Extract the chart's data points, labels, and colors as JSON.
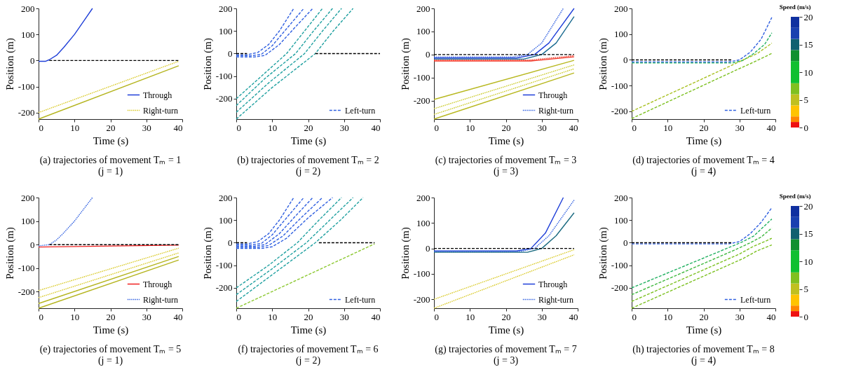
{
  "chart_data": [
    {
      "type": "line",
      "title": "(a) trajectories of movement Tₘ = 1",
      "subtitle": "(j = 1)",
      "xlabel": "Time (s)",
      "ylabel": "Position (m)",
      "xlim": [
        0,
        40
      ],
      "xticks": [
        0,
        10,
        20,
        30,
        40
      ],
      "ylim": [
        -225,
        200
      ],
      "yticks": [
        -200,
        -100,
        0,
        100,
        200
      ],
      "legend": "bottom right",
      "series": [
        {
          "name": "Through",
          "color": "#1f3fd8",
          "line_style": "solid",
          "x": [
            0,
            2,
            3,
            5,
            7,
            10,
            12.5,
            15
          ],
          "values": [
            -3,
            -3,
            3,
            20,
            50,
            100,
            150,
            200
          ]
        },
        {
          "name": "Right-turn",
          "color": "#d8c820",
          "line_style": "dotted",
          "x": [
            0,
            39
          ],
          "values": [
            -200,
            -3
          ]
        },
        {
          "color": "#b5b520",
          "line_style": "solid",
          "x": [
            0,
            39
          ],
          "values": [
            -225,
            -20
          ]
        },
        {
          "color": "#000000",
          "line_style": "dashed",
          "x": [
            3,
            39
          ],
          "values": [
            0,
            0
          ]
        }
      ]
    },
    {
      "type": "line",
      "title": "(b) trajectories of movement Tₘ = 2",
      "subtitle": "(j = 2)",
      "xlabel": "Time (s)",
      "ylabel": "Position (m)",
      "xlim": [
        0,
        40
      ],
      "xticks": [
        0,
        10,
        20,
        30,
        40
      ],
      "ylim": [
        -290,
        200
      ],
      "yticks": [
        -200,
        -100,
        0,
        100,
        200
      ],
      "legend": "bottom right",
      "series": [
        {
          "name": "Left-turn",
          "color": "#2f5fe0",
          "line_style": "dashed",
          "x": [
            0,
            3,
            6,
            9,
            12,
            16
          ],
          "values": [
            -5,
            -5,
            5,
            40,
            100,
            200
          ]
        },
        {
          "color": "#2f5fe0",
          "line_style": "dashed",
          "x": [
            0,
            4,
            7,
            10,
            14,
            18.8
          ],
          "values": [
            -10,
            -10,
            -3,
            35,
            110,
            200
          ]
        },
        {
          "color": "#2f5fe0",
          "line_style": "dashed",
          "x": [
            0,
            5,
            8,
            12,
            16,
            21.3
          ],
          "values": [
            -15,
            -15,
            -8,
            40,
            110,
            200
          ]
        },
        {
          "color": "#1fa0a0",
          "line_style": "dashed",
          "x": [
            0,
            7,
            14,
            19,
            24
          ],
          "values": [
            -200,
            -100,
            0,
            100,
            200
          ]
        },
        {
          "color": "#1fa0a0",
          "line_style": "dashed",
          "x": [
            0,
            8,
            16.5,
            21.5,
            26.8
          ],
          "values": [
            -230,
            -110,
            0,
            100,
            200
          ]
        },
        {
          "color": "#1fa0a0",
          "line_style": "dashed",
          "x": [
            0,
            9,
            19,
            24,
            29.3
          ],
          "values": [
            -260,
            -130,
            0,
            100,
            200
          ]
        },
        {
          "color": "#1fa0a0",
          "line_style": "dashed",
          "x": [
            0,
            10,
            22,
            27,
            32.5
          ],
          "values": [
            -290,
            -150,
            0,
            100,
            200
          ]
        },
        {
          "color": "#000000",
          "line_style": "dashed",
          "x": [
            0,
            3
          ],
          "values": [
            0,
            0
          ]
        },
        {
          "color": "#000000",
          "line_style": "dashed",
          "x": [
            22,
            40
          ],
          "values": [
            0,
            0
          ]
        }
      ]
    },
    {
      "type": "line",
      "title": "(c) trajectories of movement Tₘ = 3",
      "subtitle": "(j = 3)",
      "xlabel": "Time (s)",
      "ylabel": "Position (m)",
      "xlim": [
        0,
        40
      ],
      "xticks": [
        0,
        10,
        20,
        30,
        40
      ],
      "ylim": [
        -280,
        200
      ],
      "yticks": [
        -200,
        -100,
        0,
        100,
        200
      ],
      "legend": "bottom right",
      "series": [
        {
          "name": "Through",
          "color": "#1f3fd8",
          "line_style": "solid",
          "x": [
            0,
            23,
            28,
            32,
            39
          ],
          "values": [
            -15,
            -15,
            0,
            50,
            200
          ]
        },
        {
          "name": "Right-turn",
          "color": "#2f5fe0",
          "line_style": "dotted",
          "x": [
            0,
            22,
            26,
            30,
            36
          ],
          "values": [
            -10,
            -10,
            0,
            50,
            200
          ]
        },
        {
          "color": "#1a6a90",
          "line_style": "solid",
          "x": [
            0,
            25,
            30,
            34,
            39
          ],
          "values": [
            -20,
            -20,
            0,
            50,
            165
          ]
        },
        {
          "color": "#f03020",
          "line_style": "dotted",
          "x": [
            0,
            26,
            39
          ],
          "values": [
            -25,
            -25,
            -5
          ]
        },
        {
          "color": "#f03020",
          "line_style": "solid",
          "x": [
            0,
            27,
            39
          ],
          "values": [
            -28,
            -28,
            -10
          ]
        },
        {
          "color": "#b8b820",
          "line_style": "solid",
          "x": [
            0,
            39
          ],
          "values": [
            -195,
            -25
          ]
        },
        {
          "color": "#c8c820",
          "line_style": "dotted",
          "x": [
            0,
            39
          ],
          "values": [
            -235,
            -45
          ]
        },
        {
          "color": "#c8c820",
          "line_style": "dotted",
          "x": [
            0,
            39
          ],
          "values": [
            -260,
            -62
          ]
        },
        {
          "color": "#b8b820",
          "line_style": "solid",
          "x": [
            0,
            39
          ],
          "values": [
            -280,
            -80
          ]
        },
        {
          "color": "#000000",
          "line_style": "dashed",
          "x": [
            0,
            39
          ],
          "values": [
            0,
            0
          ]
        }
      ]
    },
    {
      "type": "line",
      "title": "(d) trajectories of movement Tₘ = 4",
      "subtitle": "(j = 4)",
      "xlabel": "Time (s)",
      "ylabel": "Position (m)",
      "xlim": [
        0,
        40
      ],
      "xticks": [
        0,
        10,
        20,
        30,
        40
      ],
      "ylim": [
        -230,
        200
      ],
      "yticks": [
        -200,
        -100,
        0,
        100,
        200
      ],
      "legend": "bottom right",
      "clabel": "Speed (m/s)",
      "clim": [
        0,
        20
      ],
      "cticks": [
        0,
        5,
        10,
        15,
        20
      ],
      "series": [
        {
          "name": "Left-turn",
          "color": "#2f5fe0",
          "line_style": "dashed",
          "x": [
            0,
            27,
            30,
            33,
            36,
            39
          ],
          "values": [
            -8,
            -8,
            0,
            30,
            80,
            165
          ]
        },
        {
          "color": "#20b060",
          "line_style": "dashed",
          "x": [
            0,
            28,
            31,
            34,
            37,
            39
          ],
          "values": [
            -12,
            -12,
            -2,
            25,
            60,
            105
          ]
        },
        {
          "color": "#a8c020",
          "line_style": "dashed",
          "x": [
            0,
            28,
            31,
            35,
            39
          ],
          "values": [
            -200,
            -20,
            0,
            25,
            65
          ]
        },
        {
          "color": "#7cc020",
          "line_style": "dashed",
          "x": [
            0,
            29,
            33,
            36,
            39
          ],
          "values": [
            -228,
            -40,
            -15,
            5,
            25
          ]
        },
        {
          "color": "#000000",
          "line_style": "dashed",
          "x": [
            0,
            28
          ],
          "values": [
            0,
            0
          ]
        }
      ]
    },
    {
      "type": "line",
      "title": "(e) trajectories of movement Tₘ = 5",
      "subtitle": "(j = 1)",
      "xlabel": "Time (s)",
      "ylabel": "Position (m)",
      "xlim": [
        0,
        40
      ],
      "xticks": [
        0,
        10,
        20,
        30,
        40
      ],
      "ylim": [
        -270,
        200
      ],
      "yticks": [
        -200,
        -100,
        0,
        100,
        200
      ],
      "legend": "bottom right",
      "series": [
        {
          "name": "Through",
          "color": "#f02020",
          "line_style": "solid",
          "x": [
            0,
            39
          ],
          "values": [
            -10,
            -2
          ]
        },
        {
          "name": "Right-turn",
          "color": "#2f5fe0",
          "line_style": "dotted",
          "x": [
            0,
            3,
            5,
            7,
            10,
            15
          ],
          "values": [
            -5,
            0,
            20,
            50,
            100,
            200
          ]
        },
        {
          "color": "#d8c820",
          "line_style": "dotted",
          "x": [
            0,
            39
          ],
          "values": [
            -195,
            -15
          ]
        },
        {
          "color": "#d8c820",
          "line_style": "dotted",
          "x": [
            0,
            39
          ],
          "values": [
            -225,
            -35
          ]
        },
        {
          "color": "#b5b520",
          "line_style": "solid",
          "x": [
            0,
            39
          ],
          "values": [
            -250,
            -50
          ]
        },
        {
          "color": "#b5b520",
          "line_style": "solid",
          "x": [
            0,
            39
          ],
          "values": [
            -270,
            -65
          ]
        },
        {
          "color": "#000000",
          "line_style": "dashed",
          "x": [
            3,
            39
          ],
          "values": [
            0,
            0
          ]
        }
      ]
    },
    {
      "type": "line",
      "title": "(f) trajectories of movement Tₘ = 6",
      "subtitle": "(j = 2)",
      "xlabel": "Time (s)",
      "ylabel": "Position (m)",
      "xlim": [
        0,
        40
      ],
      "xticks": [
        0,
        10,
        20,
        30,
        40
      ],
      "ylim": [
        -290,
        200
      ],
      "yticks": [
        -200,
        -100,
        0,
        100,
        200
      ],
      "legend": "bottom right",
      "series": [
        {
          "name": "Left-turn",
          "color": "#2f5fe0",
          "line_style": "dashed",
          "x": [
            0,
            3,
            6,
            9,
            12,
            16
          ],
          "values": [
            -5,
            -5,
            5,
            40,
            100,
            200
          ]
        },
        {
          "color": "#2f5fe0",
          "line_style": "dashed",
          "x": [
            0,
            4,
            7,
            10,
            14,
            18.8
          ],
          "values": [
            -10,
            -10,
            -3,
            35,
            110,
            200
          ]
        },
        {
          "color": "#2f5fe0",
          "line_style": "dashed",
          "x": [
            0,
            5,
            8,
            12,
            16,
            21.3
          ],
          "values": [
            -15,
            -15,
            -8,
            40,
            110,
            200
          ]
        },
        {
          "color": "#2f5fe0",
          "line_style": "dashed",
          "x": [
            0,
            6,
            9,
            13,
            18,
            24
          ],
          "values": [
            -20,
            -20,
            -12,
            30,
            110,
            200
          ]
        },
        {
          "color": "#2f5fe0",
          "line_style": "dashed",
          "x": [
            0,
            7,
            10,
            14,
            20,
            26.8
          ],
          "values": [
            -25,
            -25,
            -18,
            20,
            110,
            200
          ]
        },
        {
          "color": "#1fa0a0",
          "line_style": "dashed",
          "x": [
            0,
            9,
            17,
            23,
            29.3
          ],
          "values": [
            -200,
            -100,
            0,
            100,
            200
          ]
        },
        {
          "color": "#1fa0a0",
          "line_style": "dashed",
          "x": [
            0,
            10,
            19.5,
            26,
            32.5
          ],
          "values": [
            -230,
            -115,
            0,
            100,
            200
          ]
        },
        {
          "color": "#1fa0a0",
          "line_style": "dashed",
          "x": [
            0,
            11,
            22,
            29,
            35.3
          ],
          "values": [
            -260,
            -130,
            0,
            100,
            200
          ]
        },
        {
          "color": "#8cc830",
          "line_style": "dashed",
          "x": [
            0,
            38.5
          ],
          "values": [
            -290,
            -5
          ]
        },
        {
          "color": "#000000",
          "line_style": "dashed",
          "x": [
            0,
            3
          ],
          "values": [
            0,
            0
          ]
        },
        {
          "color": "#000000",
          "line_style": "dashed",
          "x": [
            23,
            38.5
          ],
          "values": [
            0,
            0
          ]
        }
      ]
    },
    {
      "type": "line",
      "title": "(g) trajectories of movement Tₘ = 7",
      "subtitle": "(j = 3)",
      "xlabel": "Time (s)",
      "ylabel": "Position (m)",
      "xlim": [
        0,
        40
      ],
      "xticks": [
        0,
        10,
        20,
        30,
        40
      ],
      "ylim": [
        -235,
        200
      ],
      "yticks": [
        -200,
        -100,
        0,
        100,
        200
      ],
      "legend": "bottom right",
      "series": [
        {
          "name": "Through",
          "color": "#1f3fd8",
          "line_style": "solid",
          "x": [
            0,
            23,
            27,
            31,
            36
          ],
          "values": [
            -10,
            -10,
            0,
            60,
            200
          ]
        },
        {
          "name": "Right-turn",
          "color": "#2f5fe0",
          "line_style": "dotted",
          "x": [
            0,
            24,
            28,
            32,
            39
          ],
          "values": [
            -12,
            -12,
            0,
            50,
            190
          ]
        },
        {
          "color": "#1a6a80",
          "line_style": "solid",
          "x": [
            0,
            26,
            30,
            34,
            39
          ],
          "values": [
            -15,
            -15,
            0,
            50,
            140
          ]
        },
        {
          "color": "#d8c820",
          "line_style": "dotted",
          "x": [
            0,
            39
          ],
          "values": [
            -200,
            -5
          ]
        },
        {
          "color": "#d8c820",
          "line_style": "dotted",
          "x": [
            0,
            39
          ],
          "values": [
            -235,
            -25
          ]
        },
        {
          "color": "#000000",
          "line_style": "dashed",
          "x": [
            0,
            39
          ],
          "values": [
            0,
            0
          ]
        }
      ]
    },
    {
      "type": "line",
      "title": "(h) trajectories of movement Tₘ = 8",
      "subtitle": "(j = 4)",
      "xlabel": "Time (s)",
      "ylabel": "Position (m)",
      "xlim": [
        0,
        40
      ],
      "xticks": [
        0,
        10,
        20,
        30,
        40
      ],
      "ylim": [
        -290,
        200
      ],
      "yticks": [
        -200,
        -100,
        0,
        100,
        200
      ],
      "legend": "bottom right",
      "clabel": "Speed (m/s)",
      "clim": [
        0,
        20
      ],
      "cticks": [
        0,
        5,
        10,
        15,
        20
      ],
      "series": [
        {
          "name": "Left-turn",
          "color": "#2f5fe0",
          "line_style": "dashed",
          "x": [
            0,
            27,
            30,
            33,
            36,
            39
          ],
          "values": [
            -5,
            -5,
            5,
            40,
            90,
            155
          ]
        },
        {
          "color": "#20b060",
          "line_style": "dashed",
          "x": [
            0,
            28,
            31,
            34,
            39
          ],
          "values": [
            -200,
            -15,
            5,
            30,
            105
          ]
        },
        {
          "color": "#40b840",
          "line_style": "dashed",
          "x": [
            0,
            29,
            33,
            36,
            39
          ],
          "values": [
            -230,
            -30,
            0,
            25,
            65
          ]
        },
        {
          "color": "#7cc020",
          "line_style": "dashed",
          "x": [
            0,
            30,
            34,
            37,
            39
          ],
          "values": [
            -260,
            -50,
            -15,
            5,
            20
          ]
        },
        {
          "color": "#7cc020",
          "line_style": "dashed",
          "x": [
            0,
            31,
            35,
            39
          ],
          "values": [
            -290,
            -70,
            -35,
            -10
          ]
        },
        {
          "color": "#000000",
          "line_style": "dashed",
          "x": [
            0,
            28
          ],
          "values": [
            0,
            0
          ]
        }
      ]
    }
  ]
}
